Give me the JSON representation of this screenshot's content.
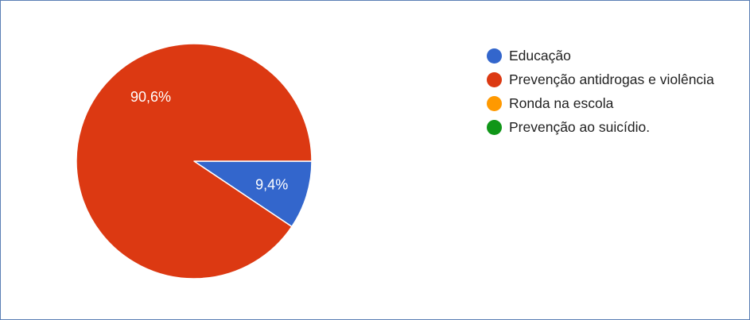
{
  "chart_data": {
    "type": "pie",
    "categories": [
      "Educação",
      "Prevenção antidrogas e violência",
      "Ronda na escola",
      "Prevenção ao suicídio."
    ],
    "values": [
      9.4,
      90.6,
      0,
      0
    ],
    "value_labels": [
      "9,4%",
      "90,6%",
      "",
      ""
    ],
    "colors": [
      "#3366cc",
      "#dc3912",
      "#ff9900",
      "#109618"
    ],
    "legend_position": "right"
  }
}
